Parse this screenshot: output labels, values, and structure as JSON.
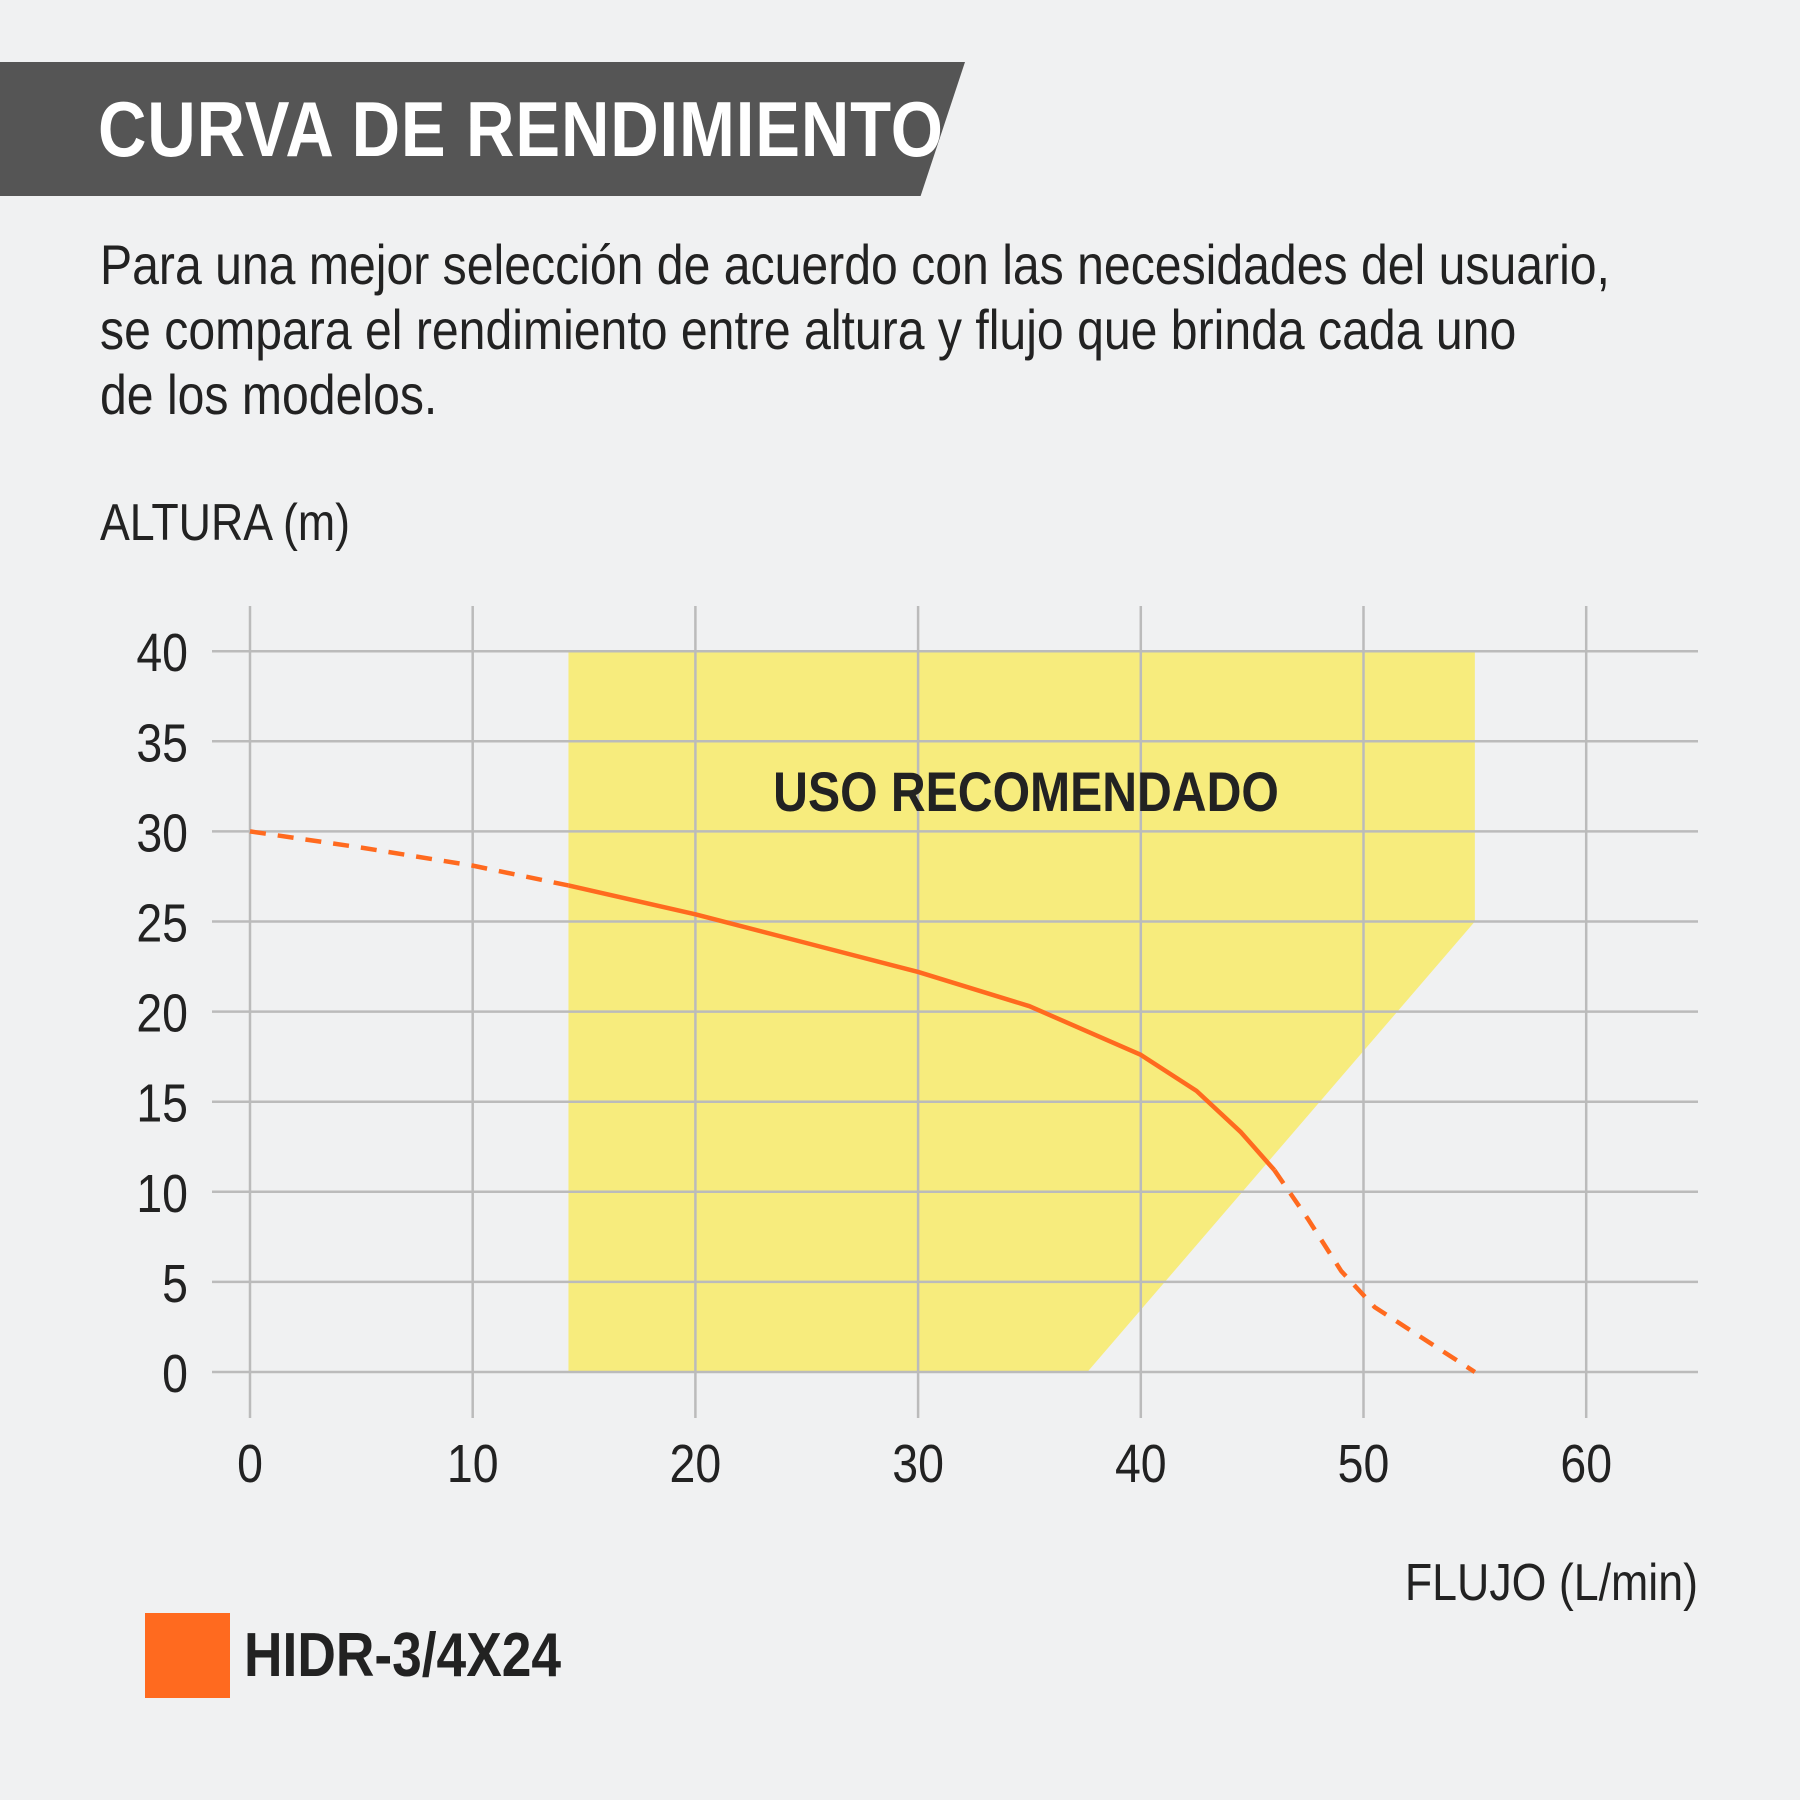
{
  "header": {
    "title": "CURVA DE RENDIMIENTO"
  },
  "description": "Para una mejor selección de acuerdo con las necesidades del usuario,\nse compara el rendimiento entre altura y flujo que brinda cada uno\nde los modelos.",
  "colors": {
    "header_bg": "#555555",
    "recommended_zone": "#f7ec7d",
    "series": "#ff6a1f",
    "grid": "#bbbbbb",
    "background": "#f0f1f2"
  },
  "chart_data": {
    "type": "line",
    "title": "",
    "xlabel": "FLUJO (L/min)",
    "ylabel": "ALTURA (m)",
    "xlim": [
      0,
      65
    ],
    "ylim": [
      0,
      40
    ],
    "x_ticks": [
      "0",
      "10",
      "20",
      "30",
      "40",
      "50",
      "60"
    ],
    "y_ticks": [
      "0",
      "5",
      "10",
      "15",
      "20",
      "25",
      "30",
      "35",
      "40"
    ],
    "grid": true,
    "recommended_zone": {
      "label": "USO RECOMENDADO",
      "polygon": [
        [
          14.3,
          0
        ],
        [
          14.3,
          40
        ],
        [
          55,
          40
        ],
        [
          55,
          25
        ],
        [
          37.6,
          0
        ]
      ]
    },
    "series": [
      {
        "name": "HIDR-3/4X24",
        "color": "#ff6a1f",
        "points": [
          [
            0,
            30
          ],
          [
            5,
            29.1
          ],
          [
            10,
            28.1
          ],
          [
            14.3,
            27
          ],
          [
            20,
            25.4
          ],
          [
            25,
            23.8
          ],
          [
            30,
            22.2
          ],
          [
            35,
            20.3
          ],
          [
            40,
            17.6
          ],
          [
            42.5,
            15.6
          ],
          [
            44.5,
            13.3
          ],
          [
            46,
            11.2
          ],
          [
            47.5,
            8.5
          ],
          [
            49,
            5.6
          ],
          [
            50.5,
            3.6
          ],
          [
            52.5,
            2
          ],
          [
            55,
            0
          ]
        ],
        "dashed_ranges": [
          [
            0,
            14.3
          ],
          [
            46,
            55
          ]
        ]
      }
    ],
    "legend": {
      "placement": "bottom-left",
      "entries": [
        "HIDR-3/4X24"
      ]
    }
  }
}
